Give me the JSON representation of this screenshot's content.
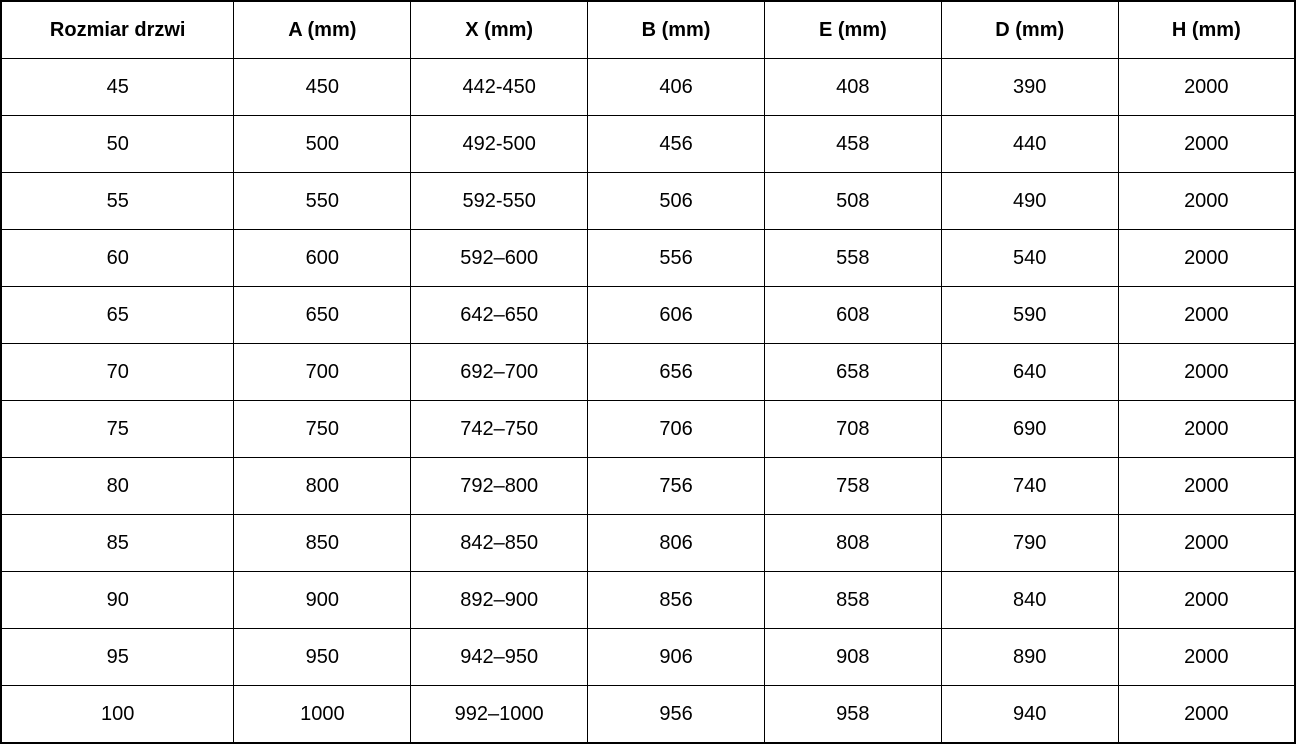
{
  "table": {
    "name": "door-size-table",
    "columns": [
      "Rozmiar drzwi",
      "A (mm)",
      "X (mm)",
      "B (mm)",
      "E (mm)",
      "D (mm)",
      "H (mm)"
    ],
    "rows": [
      [
        "45",
        "450",
        "442-450",
        "406",
        "408",
        "390",
        "2000"
      ],
      [
        "50",
        "500",
        "492-500",
        "456",
        "458",
        "440",
        "2000"
      ],
      [
        "55",
        "550",
        "592-550",
        "506",
        "508",
        "490",
        "2000"
      ],
      [
        "60",
        "600",
        "592–600",
        "556",
        "558",
        "540",
        "2000"
      ],
      [
        "65",
        "650",
        "642–650",
        "606",
        "608",
        "590",
        "2000"
      ],
      [
        "70",
        "700",
        "692–700",
        "656",
        "658",
        "640",
        "2000"
      ],
      [
        "75",
        "750",
        "742–750",
        "706",
        "708",
        "690",
        "2000"
      ],
      [
        "80",
        "800",
        "792–800",
        "756",
        "758",
        "740",
        "2000"
      ],
      [
        "85",
        "850",
        "842–850",
        "806",
        "808",
        "790",
        "2000"
      ],
      [
        "90",
        "900",
        "892–900",
        "856",
        "858",
        "840",
        "2000"
      ],
      [
        "95",
        "950",
        "942–950",
        "906",
        "908",
        "890",
        "2000"
      ],
      [
        "100",
        "1000",
        "992–1000",
        "956",
        "958",
        "940",
        "2000"
      ]
    ],
    "colors": {
      "border": "#000000",
      "text": "#000000",
      "background": "#ffffff"
    }
  }
}
